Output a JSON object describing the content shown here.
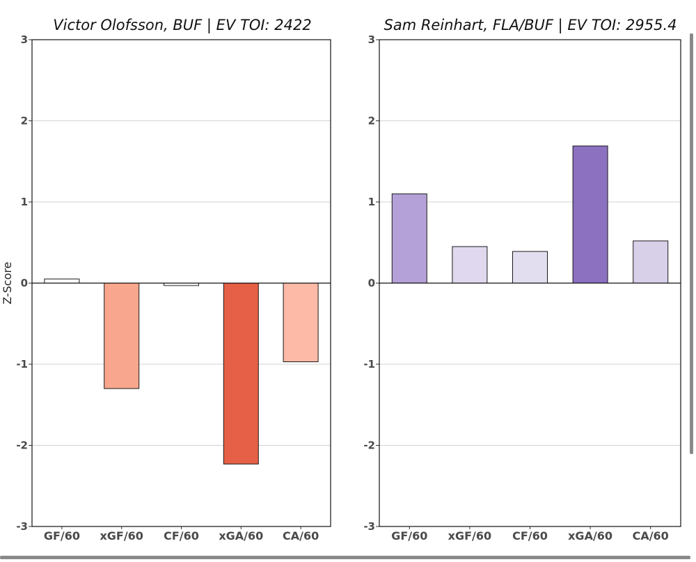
{
  "chart_data": [
    {
      "type": "bar",
      "title": "Victor Olofsson, BUF  |  EV TOI: 2422",
      "ylabel": "Z-Score",
      "xlabel": "",
      "ylim": [
        -3,
        3
      ],
      "yticks": [
        "-3",
        "-2",
        "-1",
        "0",
        "1",
        "2",
        "3"
      ],
      "grid": true,
      "categories": [
        "GF/60",
        "xGF/60",
        "CF/60",
        "xGA/60",
        "CA/60"
      ],
      "values": [
        0.05,
        -1.3,
        -0.03,
        -2.23,
        -0.97
      ],
      "colors": [
        "#ffffff",
        "#f8a68d",
        "#ffffff",
        "#e56046",
        "#fcbaa7"
      ]
    },
    {
      "type": "bar",
      "title": "Sam Reinhart, FLA/BUF  |  EV TOI: 2955.4",
      "ylabel": "",
      "xlabel": "",
      "ylim": [
        -3,
        3
      ],
      "yticks": [
        "-3",
        "-2",
        "-1",
        "0",
        "1",
        "2",
        "3"
      ],
      "grid": true,
      "categories": [
        "GF/60",
        "xGF/60",
        "CF/60",
        "xGA/60",
        "CA/60"
      ],
      "values": [
        1.1,
        0.45,
        0.39,
        1.69,
        0.52
      ],
      "colors": [
        "#b3a1d7",
        "#dfd8ee",
        "#e3ddf0",
        "#8c71c1",
        "#d8cfe9"
      ]
    }
  ]
}
